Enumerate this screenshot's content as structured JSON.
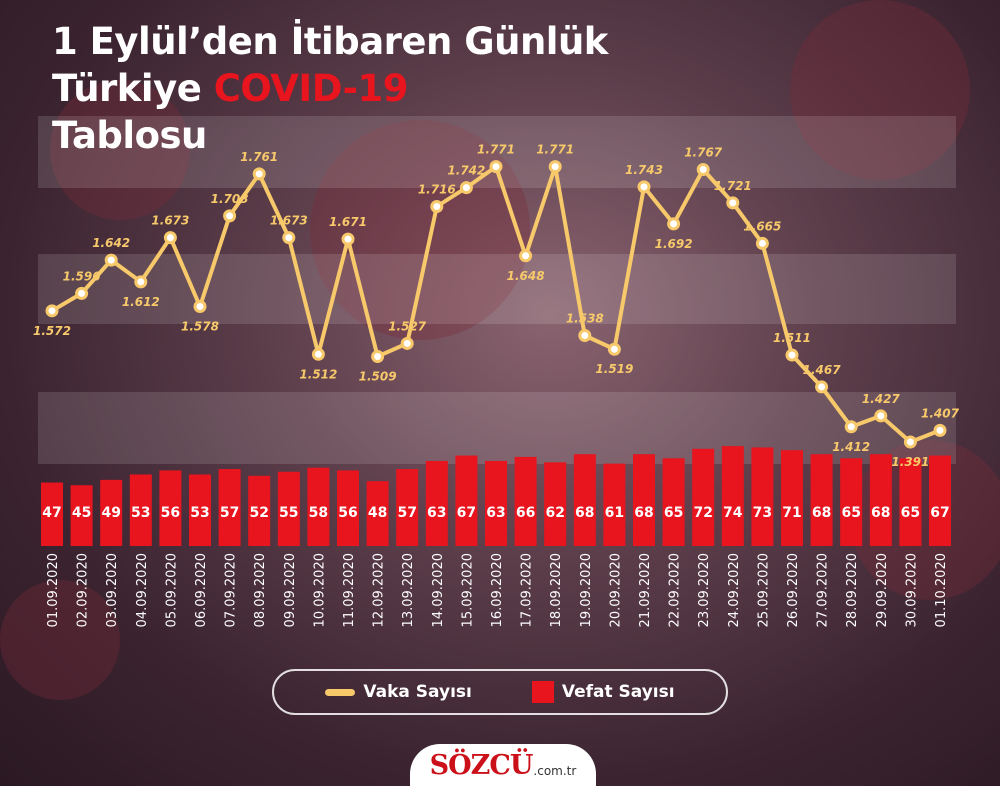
{
  "title": {
    "line1": "1 Eylül’den İtibaren Günlük",
    "line2_pre": "Türkiye ",
    "line2_highlight": "COVID-19",
    "line3": "Tablosu"
  },
  "legend": {
    "cases_label": "Vaka Sayısı",
    "deaths_label": "Vefat Sayısı"
  },
  "brand": {
    "name": "SÖZCÜ",
    "domain": ".com.tr"
  },
  "colors": {
    "line": "#f7c96b",
    "bar": "#e8141e",
    "highlight": "#e8141e",
    "text": "#ffffff"
  },
  "chart_data": {
    "type": "bar+line",
    "x": [
      "01.09.2020",
      "02.09.2020",
      "03.09.2020",
      "04.09.2020",
      "05.09.2020",
      "06.09.2020",
      "07.09.2020",
      "08.09.2020",
      "09.09.2020",
      "10.09.2020",
      "11.09.2020",
      "12.09.2020",
      "13.09.2020",
      "14.09.2020",
      "15.09.2020",
      "16.09.2020",
      "17.09.2020",
      "18.09.2020",
      "19.09.2020",
      "20.09.2020",
      "21.09.2020",
      "22.09.2020",
      "23.09.2020",
      "24.09.2020",
      "25.09.2020",
      "26.09.2020",
      "27.09.2020",
      "28.09.2020",
      "29.09.2020",
      "30.09.2020",
      "01.10.2020"
    ],
    "series": [
      {
        "name": "Vaka Sayısı",
        "type": "line",
        "values": [
          1572,
          1596,
          1642,
          1612,
          1673,
          1578,
          1703,
          1761,
          1673,
          1512,
          1671,
          1509,
          1527,
          1716,
          1742,
          1771,
          1648,
          1771,
          1538,
          1519,
          1743,
          1692,
          1767,
          1721,
          1665,
          1511,
          1467,
          1412,
          1427,
          1391,
          1407
        ],
        "labels": [
          "1.572",
          "1.596",
          "1.642",
          "1.612",
          "1.673",
          "1.578",
          "1.703",
          "1.761",
          "1.673",
          "1.512",
          "1.671",
          "1.509",
          "1.527",
          "1.716",
          "1.742",
          "1.771",
          "1.648",
          "1.771",
          "1.538",
          "1.519",
          "1.743",
          "1.692",
          "1.767",
          "1.721",
          "1.665",
          "1.511",
          "1.467",
          "1.412",
          "1.427",
          "1.391",
          "1.407"
        ]
      },
      {
        "name": "Vefat Sayısı",
        "type": "bar",
        "values": [
          47,
          45,
          49,
          53,
          56,
          53,
          57,
          52,
          55,
          58,
          56,
          48,
          57,
          63,
          67,
          63,
          66,
          62,
          68,
          61,
          68,
          65,
          72,
          74,
          73,
          71,
          68,
          65,
          68,
          65,
          67
        ]
      }
    ]
  }
}
